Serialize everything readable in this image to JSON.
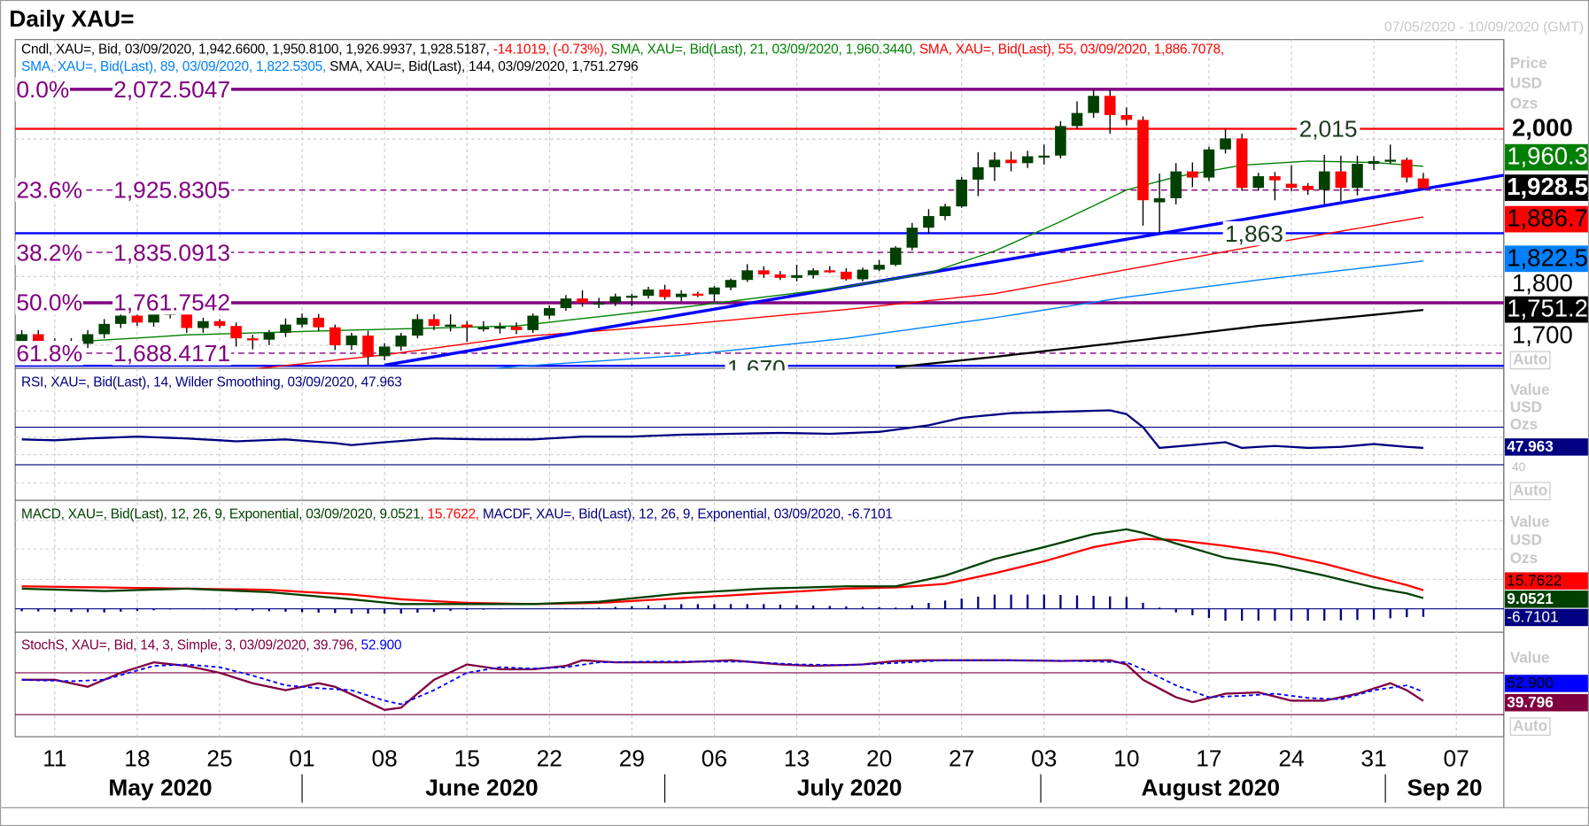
{
  "header": {
    "title": "Daily XAU=",
    "date_range": "07/05/2020 - 10/09/2020 (GMT)"
  },
  "colors": {
    "up": "#004000",
    "down": "#ff0000",
    "fib": "#800080",
    "sma21": "#008000",
    "sma55": "#ff0000",
    "sma89": "#0080ff",
    "sma144": "#000000",
    "trend": "#0000ff",
    "rsi": "#000080",
    "macd": "#004000",
    "signal": "#ff0000",
    "hist": "#000080",
    "stoch_k": "#800040",
    "stoch_d": "#0000ff"
  },
  "main_legend": {
    "line1": [
      {
        "text": "Cndl, XAU=, Bid, 03/09/2020, 1,942.6600, 1,950.8100, 1,926.9937, 1,928.5187, ",
        "color": "#000000"
      },
      {
        "text": "-14.1019, (-0.73%), ",
        "color": "#ff0000"
      },
      {
        "text": "SMA, XAU=, Bid(Last),  21, 03/09/2020, 1,960.3440, ",
        "color": "#008000"
      },
      {
        "text": "SMA, XAU=, Bid(Last),  55, 03/09/2020, 1,886.7078,",
        "color": "#ff0000"
      }
    ],
    "line2": [
      {
        "text": "SMA, XAU=, Bid(Last),  89, 03/09/2020, 1,822.5305, ",
        "color": "#0080ff"
      },
      {
        "text": "SMA, XAU=, Bid(Last),  144, 03/09/2020, 1,751.2796",
        "color": "#000000"
      }
    ]
  },
  "fib_levels": [
    {
      "pct": "0.0%",
      "value": "2,072.5047",
      "price": 2072.5047,
      "style": "solid"
    },
    {
      "pct": "23.6%",
      "value": "1,925.8305",
      "price": 1925.8305,
      "style": "dashed"
    },
    {
      "pct": "38.2%",
      "value": "1,835.0913",
      "price": 1835.0913,
      "style": "dashed"
    },
    {
      "pct": "50.0%",
      "value": "1,761.7542",
      "price": 1761.7542,
      "style": "solid"
    },
    {
      "pct": "61.8%",
      "value": "1,688.4171",
      "price": 1688.4171,
      "style": "dashed"
    }
  ],
  "horizontal_levels": [
    {
      "label": "2,015",
      "price": 2015,
      "color": "#ff0000"
    },
    {
      "label": "1,863",
      "price": 1863,
      "color": "#0000ff"
    },
    {
      "label": "1,670",
      "price": 1670,
      "color": "#0000ff"
    }
  ],
  "trendline": {
    "from": [
      22,
      1671
    ],
    "to": [
      85,
      1927.5
    ]
  },
  "price_axis": {
    "units": [
      "Price",
      "USD",
      "Ozs"
    ],
    "ticks": [
      "2,000",
      "1,800",
      "1,700"
    ],
    "tick_prices": [
      2000,
      1800,
      1700
    ],
    "markers": [
      {
        "label": "1,960.3440",
        "bg": "#008000",
        "fg": "#ffffff"
      },
      {
        "label": "1,928.5187",
        "bg": "#000000",
        "fg": "#ffffff"
      },
      {
        "label": "1,886.7078",
        "bg": "#ff0000",
        "fg": "#000000"
      },
      {
        "label": "1,822.5305",
        "bg": "#0080ff",
        "fg": "#000000"
      },
      {
        "label": "1,751.2796",
        "bg": "#000000",
        "fg": "#ffffff"
      }
    ],
    "auto": "Auto"
  },
  "candles": [
    [
      1686,
      1722,
      1682,
      1716
    ],
    [
      1716,
      1722,
      1696,
      1702
    ],
    [
      1702,
      1710,
      1691,
      1698
    ],
    [
      1698,
      1710,
      1692,
      1702
    ],
    [
      1702,
      1722,
      1696,
      1716
    ],
    [
      1716,
      1738,
      1710,
      1731
    ],
    [
      1731,
      1752,
      1725,
      1743
    ],
    [
      1743,
      1765,
      1728,
      1733
    ],
    [
      1733,
      1750,
      1727,
      1745
    ],
    [
      1745,
      1752,
      1739,
      1747
    ],
    [
      1747,
      1750,
      1718,
      1725
    ],
    [
      1725,
      1740,
      1718,
      1735
    ],
    [
      1735,
      1738,
      1725,
      1728
    ],
    [
      1728,
      1733,
      1698,
      1710
    ],
    [
      1710,
      1715,
      1694,
      1708
    ],
    [
      1708,
      1722,
      1700,
      1718
    ],
    [
      1718,
      1739,
      1712,
      1730
    ],
    [
      1730,
      1746,
      1726,
      1740
    ],
    [
      1740,
      1745,
      1721,
      1726
    ],
    [
      1726,
      1730,
      1693,
      1700
    ],
    [
      1700,
      1718,
      1693,
      1714
    ],
    [
      1714,
      1721,
      1671,
      1684
    ],
    [
      1684,
      1703,
      1678,
      1698
    ],
    [
      1698,
      1718,
      1692,
      1714
    ],
    [
      1714,
      1745,
      1710,
      1738
    ],
    [
      1738,
      1745,
      1722,
      1728
    ],
    [
      1728,
      1745,
      1720,
      1730
    ],
    [
      1730,
      1735,
      1705,
      1726
    ],
    [
      1726,
      1735,
      1720,
      1726
    ],
    [
      1726,
      1733,
      1717,
      1727
    ],
    [
      1727,
      1733,
      1716,
      1722
    ],
    [
      1722,
      1746,
      1718,
      1743
    ],
    [
      1743,
      1758,
      1738,
      1754
    ],
    [
      1754,
      1773,
      1750,
      1768
    ],
    [
      1768,
      1780,
      1756,
      1762
    ],
    [
      1762,
      1769,
      1754,
      1762
    ],
    [
      1762,
      1775,
      1757,
      1771
    ],
    [
      1771,
      1775,
      1757,
      1772
    ],
    [
      1772,
      1785,
      1768,
      1781
    ],
    [
      1781,
      1788,
      1766,
      1770
    ],
    [
      1770,
      1780,
      1764,
      1775
    ],
    [
      1775,
      1778,
      1770,
      1774
    ],
    [
      1774,
      1786,
      1764,
      1784
    ],
    [
      1784,
      1797,
      1780,
      1795
    ],
    [
      1795,
      1818,
      1792,
      1809
    ],
    [
      1809,
      1815,
      1798,
      1803
    ],
    [
      1803,
      1808,
      1795,
      1798
    ],
    [
      1798,
      1817,
      1793,
      1802
    ],
    [
      1802,
      1812,
      1797,
      1809
    ],
    [
      1809,
      1815,
      1805,
      1807
    ],
    [
      1807,
      1812,
      1794,
      1796
    ],
    [
      1796,
      1813,
      1793,
      1810
    ],
    [
      1810,
      1824,
      1808,
      1817
    ],
    [
      1817,
      1844,
      1815,
      1842
    ],
    [
      1842,
      1878,
      1838,
      1871
    ],
    [
      1871,
      1898,
      1862,
      1888
    ],
    [
      1888,
      1906,
      1882,
      1902
    ],
    [
      1902,
      1945,
      1900,
      1941
    ],
    [
      1941,
      1981,
      1917,
      1959
    ],
    [
      1959,
      1981,
      1939,
      1970
    ],
    [
      1970,
      1982,
      1953,
      1965
    ],
    [
      1965,
      1983,
      1958,
      1975
    ],
    [
      1975,
      1992,
      1963,
      1976
    ],
    [
      1976,
      2026,
      1972,
      2019
    ],
    [
      2019,
      2055,
      2015,
      2038
    ],
    [
      2038,
      2072.5,
      2031,
      2063
    ],
    [
      2063,
      2072,
      2008,
      2035
    ],
    [
      2035,
      2046,
      2020,
      2028
    ],
    [
      2028,
      2033,
      1874,
      1911
    ],
    [
      1908,
      1950,
      1863,
      1914
    ],
    [
      1914,
      1965,
      1905,
      1953
    ],
    [
      1953,
      1966,
      1930,
      1944
    ],
    [
      1944,
      1989,
      1939,
      1985
    ],
    [
      1985,
      2015,
      1979,
      2001
    ],
    [
      2001,
      2008,
      1925,
      1929
    ],
    [
      1929,
      1951,
      1925,
      1946
    ],
    [
      1946,
      1952,
      1911,
      1940
    ],
    [
      1935,
      1962,
      1924,
      1929
    ],
    [
      1932,
      1936,
      1919,
      1926
    ],
    [
      1926,
      1977,
      1905,
      1953
    ],
    [
      1953,
      1976,
      1910,
      1929
    ],
    [
      1929,
      1976,
      1918,
      1964
    ],
    [
      1964,
      1975,
      1955,
      1968
    ],
    [
      1968,
      1992,
      1964,
      1970
    ],
    [
      1970,
      1973,
      1937,
      1944
    ],
    [
      1942.66,
      1950.81,
      1926.9937,
      1928.5187
    ]
  ],
  "sma": {
    "sma21": [
      [
        0,
        1700
      ],
      [
        10,
        1715
      ],
      [
        20,
        1722
      ],
      [
        30,
        1728
      ],
      [
        40,
        1755
      ],
      [
        50,
        1785
      ],
      [
        55,
        1805
      ],
      [
        59,
        1837
      ],
      [
        63,
        1880
      ],
      [
        67,
        1926
      ],
      [
        70,
        1945
      ],
      [
        74,
        1962
      ],
      [
        78,
        1968
      ],
      [
        82,
        1966
      ],
      [
        85,
        1960.344
      ]
    ],
    "sma55": [
      [
        0,
        1648
      ],
      [
        12,
        1660
      ],
      [
        22,
        1686
      ],
      [
        30,
        1712
      ],
      [
        40,
        1730
      ],
      [
        50,
        1752
      ],
      [
        59,
        1775
      ],
      [
        67,
        1810
      ],
      [
        75,
        1845
      ],
      [
        85,
        1886.7078
      ]
    ],
    "sma89": [
      [
        20,
        1645
      ],
      [
        30,
        1669
      ],
      [
        40,
        1685
      ],
      [
        50,
        1710
      ],
      [
        59,
        1740
      ],
      [
        67,
        1770
      ],
      [
        75,
        1795
      ],
      [
        85,
        1822.5305
      ]
    ],
    "sma144": [
      [
        53,
        1668
      ],
      [
        59,
        1683
      ],
      [
        67,
        1705
      ],
      [
        75,
        1728
      ],
      [
        85,
        1751.2796
      ]
    ]
  },
  "x_axis": {
    "days": [
      {
        "label": "11",
        "i": 2
      },
      {
        "label": "18",
        "i": 7
      },
      {
        "label": "25",
        "i": 12
      },
      {
        "label": "01",
        "i": 17
      },
      {
        "label": "08",
        "i": 22
      },
      {
        "label": "15",
        "i": 27
      },
      {
        "label": "22",
        "i": 32
      },
      {
        "label": "29",
        "i": 37
      },
      {
        "label": "06",
        "i": 42
      },
      {
        "label": "13",
        "i": 47
      },
      {
        "label": "20",
        "i": 52
      },
      {
        "label": "27",
        "i": 57
      },
      {
        "label": "03",
        "i": 62
      },
      {
        "label": "10",
        "i": 67
      },
      {
        "label": "17",
        "i": 72
      },
      {
        "label": "24",
        "i": 77
      },
      {
        "label": "31",
        "i": 82
      },
      {
        "label": "07",
        "i": 87
      }
    ],
    "months": [
      {
        "label": "May 2020",
        "i": 8.4
      },
      {
        "label": "June 2020",
        "i": 27.9
      },
      {
        "label": "July 2020",
        "i": 50.2
      },
      {
        "label": "August 2020",
        "i": 72.1
      },
      {
        "label": "Sep 20",
        "i": 86.3
      }
    ],
    "separators": [
      17,
      39,
      61.8,
      82.7
    ]
  },
  "rsi": {
    "legend": "RSI, XAU=, Bid(Last),  14, Wilder Smoothing, 03/09/2020, 47.963",
    "units": [
      "Value",
      "USD",
      "Ozs"
    ],
    "tick": "40",
    "value_label": "47.963",
    "auto": "Auto",
    "levels": [
      70,
      30
    ],
    "series": [
      [
        0,
        57
      ],
      [
        2,
        56
      ],
      [
        4,
        58
      ],
      [
        7,
        60
      ],
      [
        10,
        58
      ],
      [
        13,
        55
      ],
      [
        16,
        57
      ],
      [
        19,
        53
      ],
      [
        20,
        51
      ],
      [
        22,
        54
      ],
      [
        25,
        58
      ],
      [
        28,
        57
      ],
      [
        31,
        57
      ],
      [
        34,
        60
      ],
      [
        37,
        60
      ],
      [
        40,
        62
      ],
      [
        43,
        63
      ],
      [
        46,
        64
      ],
      [
        49,
        63
      ],
      [
        52,
        65
      ],
      [
        55,
        72
      ],
      [
        57,
        80
      ],
      [
        60,
        85
      ],
      [
        62,
        86
      ],
      [
        64,
        87
      ],
      [
        66,
        88
      ],
      [
        67,
        84
      ],
      [
        68,
        70
      ],
      [
        69,
        48
      ],
      [
        71,
        51
      ],
      [
        73,
        54
      ],
      [
        74,
        48
      ],
      [
        76,
        50
      ],
      [
        78,
        48
      ],
      [
        80,
        49
      ],
      [
        82,
        52
      ],
      [
        84,
        49
      ],
      [
        85,
        47.963
      ]
    ]
  },
  "macd": {
    "legend": [
      {
        "text": "MACD, XAU=, Bid(Last),  12, 26, 9, Exponential, 03/09/2020, 9.0521, ",
        "color": "#004000"
      },
      {
        "text": "15.7622, ",
        "color": "#ff0000"
      },
      {
        "text": "MACDF, XAU=, Bid(Last),  12, 26, 9, Exponential, 03/09/2020, -6.7101",
        "color": "#000080"
      }
    ],
    "units": [
      "Value",
      "USD",
      "Ozs"
    ],
    "markers": [
      {
        "label": "15.7622",
        "bg": "#ff0000",
        "fg": "#000000"
      },
      {
        "label": "9.0521",
        "bg": "#004000",
        "fg": "#ffffff"
      },
      {
        "label": "-6.7101",
        "bg": "#000080",
        "fg": "#ffffff"
      }
    ],
    "macd": [
      [
        0,
        17
      ],
      [
        5,
        15
      ],
      [
        10,
        17
      ],
      [
        15,
        14
      ],
      [
        20,
        8
      ],
      [
        23,
        4
      ],
      [
        27,
        4
      ],
      [
        31,
        4
      ],
      [
        35,
        6
      ],
      [
        40,
        13
      ],
      [
        45,
        17
      ],
      [
        50,
        19
      ],
      [
        53,
        19
      ],
      [
        56,
        28
      ],
      [
        59,
        42
      ],
      [
        62,
        52
      ],
      [
        65,
        63
      ],
      [
        67,
        67
      ],
      [
        68,
        64
      ],
      [
        70,
        55
      ],
      [
        73,
        43
      ],
      [
        76,
        37
      ],
      [
        79,
        28
      ],
      [
        82,
        18
      ],
      [
        84,
        13
      ],
      [
        85,
        9.0521
      ]
    ],
    "signal": [
      [
        0,
        19
      ],
      [
        5,
        18
      ],
      [
        10,
        17
      ],
      [
        15,
        16
      ],
      [
        20,
        12
      ],
      [
        23,
        8
      ],
      [
        27,
        5
      ],
      [
        31,
        4
      ],
      [
        35,
        5
      ],
      [
        40,
        9
      ],
      [
        45,
        13
      ],
      [
        50,
        17
      ],
      [
        53,
        18
      ],
      [
        56,
        21
      ],
      [
        59,
        30
      ],
      [
        62,
        40
      ],
      [
        65,
        52
      ],
      [
        67,
        57
      ],
      [
        68,
        59
      ],
      [
        70,
        58
      ],
      [
        73,
        53
      ],
      [
        76,
        47
      ],
      [
        79,
        38
      ],
      [
        82,
        27
      ],
      [
        84,
        20
      ],
      [
        85,
        15.7622
      ]
    ]
  },
  "stoch": {
    "legend": [
      {
        "text": "StochS, XAU=, Bid,  14, 3, Simple, 3, 03/09/2020, 39.796, ",
        "color": "#800040"
      },
      {
        "text": "52.900",
        "color": "#0000ff"
      }
    ],
    "units": [
      "Value"
    ],
    "levels": [
      80,
      20
    ],
    "markers": [
      {
        "label": "52.900",
        "bg": "#0000ff",
        "fg": "#000000"
      },
      {
        "label": "39.796",
        "bg": "#800040",
        "fg": "#ffffff"
      }
    ],
    "auto": "Auto",
    "k": [
      [
        0,
        70
      ],
      [
        2,
        70
      ],
      [
        4,
        60
      ],
      [
        6,
        80
      ],
      [
        8,
        95
      ],
      [
        10,
        90
      ],
      [
        12,
        80
      ],
      [
        14,
        65
      ],
      [
        16,
        55
      ],
      [
        18,
        65
      ],
      [
        19,
        60
      ],
      [
        22,
        27
      ],
      [
        23,
        30
      ],
      [
        25,
        70
      ],
      [
        27,
        92
      ],
      [
        29,
        85
      ],
      [
        31,
        85
      ],
      [
        33,
        90
      ],
      [
        34,
        98
      ],
      [
        36,
        95
      ],
      [
        40,
        95
      ],
      [
        43,
        98
      ],
      [
        46,
        92
      ],
      [
        48,
        90
      ],
      [
        51,
        92
      ],
      [
        53,
        97
      ],
      [
        55,
        98
      ],
      [
        58,
        98
      ],
      [
        60,
        98
      ],
      [
        63,
        97
      ],
      [
        66,
        98
      ],
      [
        67,
        92
      ],
      [
        68,
        70
      ],
      [
        70,
        45
      ],
      [
        71,
        38
      ],
      [
        73,
        50
      ],
      [
        75,
        52
      ],
      [
        77,
        40
      ],
      [
        79,
        40
      ],
      [
        81,
        50
      ],
      [
        83,
        65
      ],
      [
        84,
        55
      ],
      [
        85,
        39.796
      ]
    ],
    "d": [
      [
        0,
        70
      ],
      [
        3,
        68
      ],
      [
        5,
        70
      ],
      [
        8,
        90
      ],
      [
        10,
        92
      ],
      [
        12,
        88
      ],
      [
        14,
        76
      ],
      [
        16,
        62
      ],
      [
        18,
        58
      ],
      [
        20,
        55
      ],
      [
        22,
        40
      ],
      [
        23,
        35
      ],
      [
        25,
        55
      ],
      [
        27,
        80
      ],
      [
        29,
        88
      ],
      [
        31,
        86
      ],
      [
        33,
        88
      ],
      [
        35,
        95
      ],
      [
        38,
        96
      ],
      [
        41,
        96
      ],
      [
        44,
        96
      ],
      [
        47,
        92
      ],
      [
        50,
        91
      ],
      [
        53,
        94
      ],
      [
        56,
        98
      ],
      [
        60,
        98
      ],
      [
        64,
        97
      ],
      [
        67,
        95
      ],
      [
        68,
        85
      ],
      [
        70,
        62
      ],
      [
        72,
        45
      ],
      [
        74,
        47
      ],
      [
        76,
        50
      ],
      [
        78,
        44
      ],
      [
        80,
        42
      ],
      [
        82,
        55
      ],
      [
        84,
        62
      ],
      [
        85,
        52.9
      ]
    ]
  }
}
